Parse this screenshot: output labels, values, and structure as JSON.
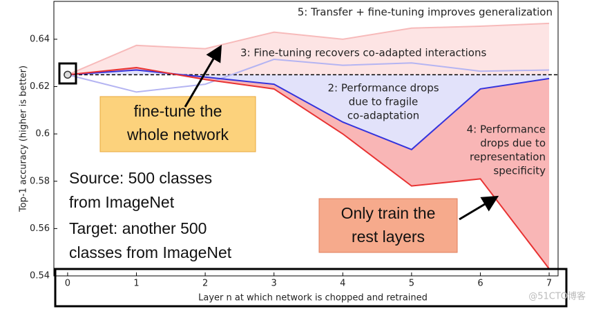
{
  "chart_data": {
    "type": "line",
    "x": [
      0,
      1,
      2,
      3,
      4,
      5,
      6,
      7
    ],
    "series": [
      {
        "color": "#f7baba",
        "fill": "#fde4e4",
        "fill_to": "baseline",
        "values": [
          0.625,
          0.6374,
          0.636,
          0.643,
          0.64,
          0.6447,
          0.6455,
          0.6467
        ]
      },
      {
        "color": "#b4b4f2",
        "values": [
          0.625,
          0.6177,
          0.621,
          0.6315,
          0.629,
          0.63,
          0.6265,
          0.627
        ]
      },
      {
        "color": "#3434dd",
        "fill": "#e2e2fa",
        "fill_to": "baseline",
        "values": [
          0.625,
          0.627,
          0.624,
          0.621,
          0.605,
          0.5934,
          0.619,
          0.6234
        ]
      },
      {
        "color": "#e83232",
        "fill": "#f9b6b6",
        "fill_to": 2,
        "values": [
          0.625,
          0.628,
          0.623,
          0.619,
          0.6,
          0.578,
          0.581,
          0.543
        ]
      }
    ],
    "baseline": 0.625,
    "xlim": [
      -0.2,
      7.13
    ],
    "ylim": [
      0.54,
      0.656
    ],
    "xticks": [
      0,
      1,
      2,
      3,
      4,
      5,
      6,
      7
    ],
    "yticks": [
      0.54,
      0.56,
      0.58,
      0.6,
      0.62,
      0.64
    ],
    "ylabel": "Top-1 accuracy (higher is better)",
    "xlabel": "Layer n at which network is chopped and retrained",
    "annotations": [
      [
        "5: Transfer + fine-tuning improves generalization"
      ],
      [
        "3: Fine-tuning recovers co-adapted interactions"
      ],
      [
        "2: Performance drops",
        "due to fragile",
        "co-adaptation"
      ],
      [
        "4: Performance",
        "drops due to",
        "representation",
        "specificity"
      ]
    ],
    "callouts": [
      [
        "fine-tune the",
        "whole network"
      ],
      [
        "Only train the",
        "rest layers"
      ]
    ],
    "source": [
      "Source: 500 classes",
      "from ImageNet"
    ],
    "target": [
      "Target: another 500",
      "classes from ImageNet"
    ],
    "watermark": "@51CTO博客"
  }
}
